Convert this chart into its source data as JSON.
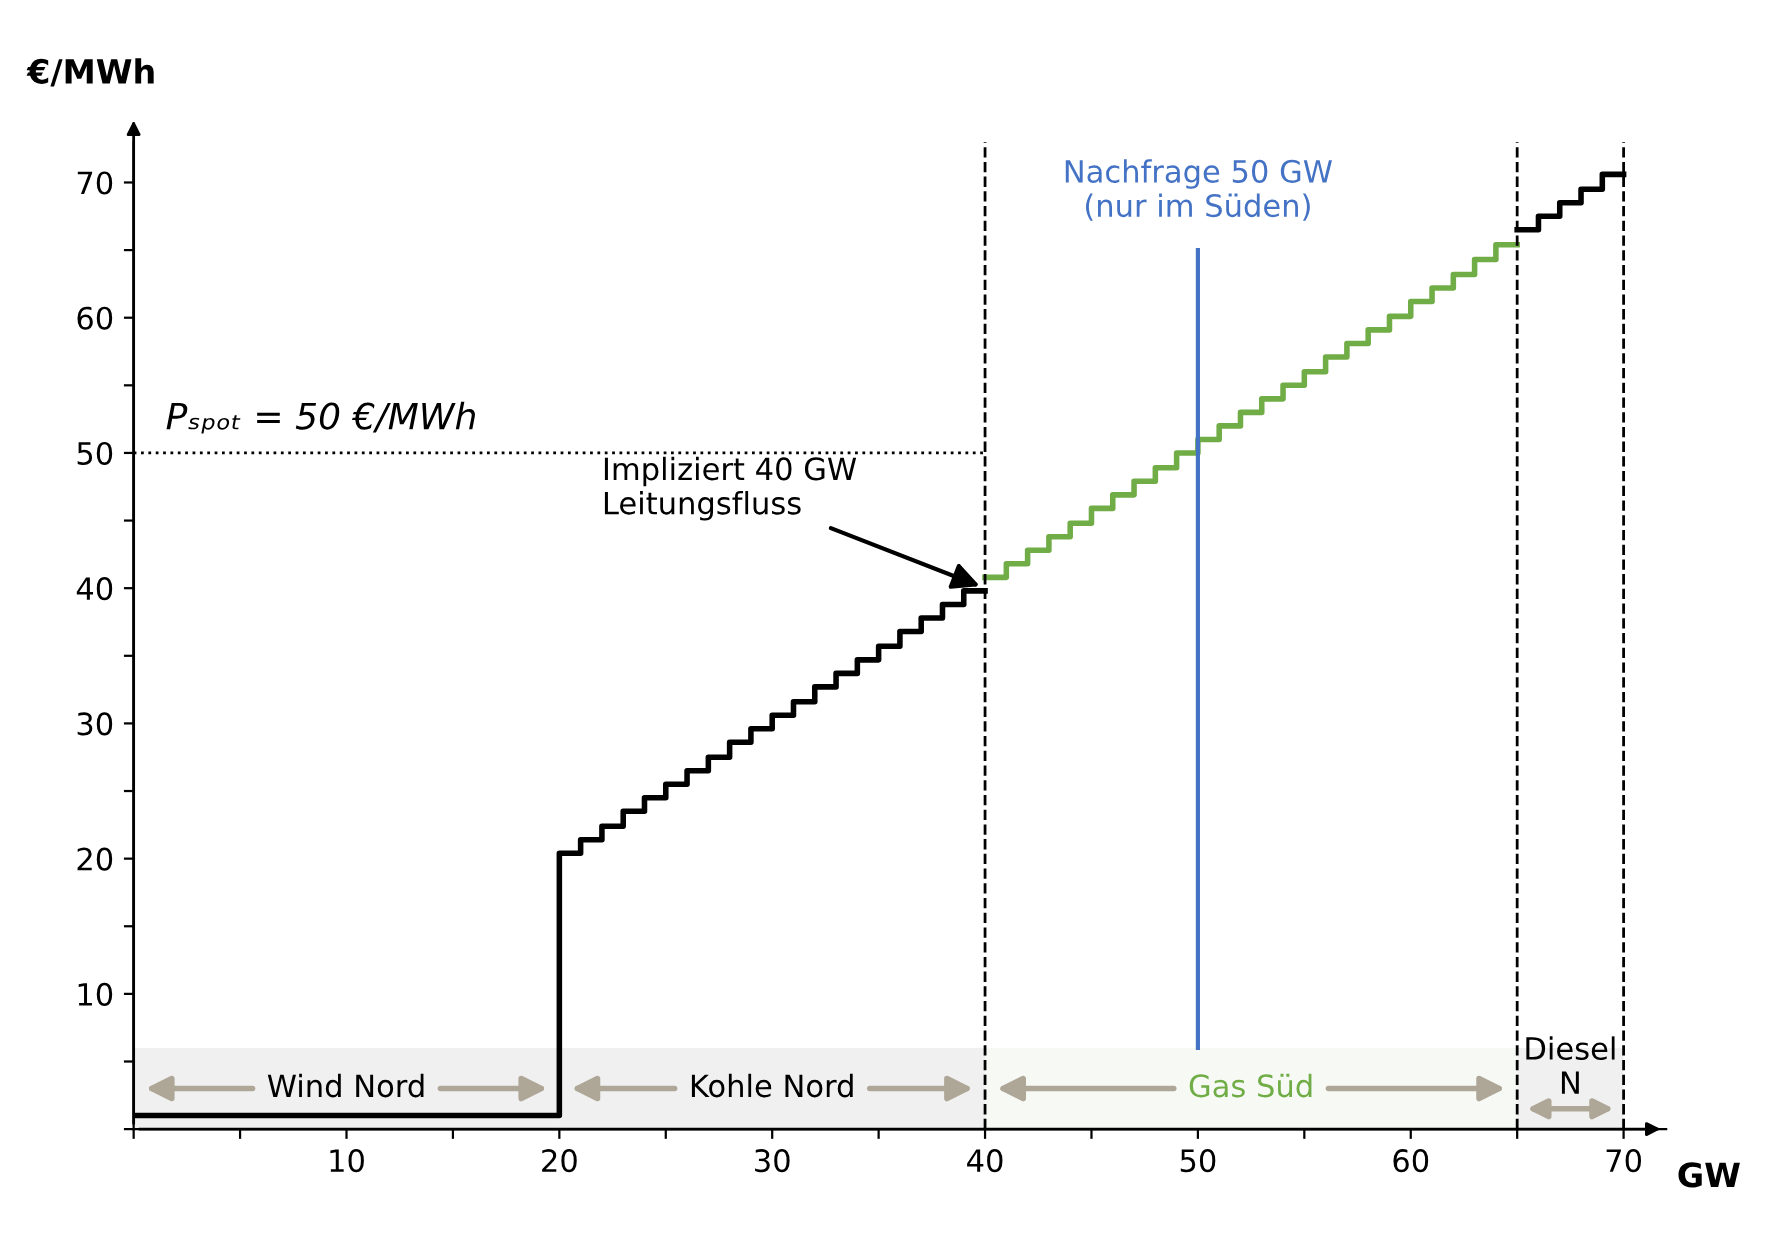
{
  "chart_data": {
    "type": "step",
    "xlabel": "GW",
    "ylabel": "€/MWh",
    "xlim": [
      0,
      72
    ],
    "ylim": [
      0,
      73
    ],
    "xticks": [
      {
        "value": 0,
        "label": null
      },
      {
        "value": 5,
        "label": null
      },
      10,
      {
        "value": 15,
        "label": null
      },
      20,
      {
        "value": 25,
        "label": null
      },
      30,
      {
        "value": 35,
        "label": null
      },
      40,
      {
        "value": 45,
        "label": null
      },
      50,
      {
        "value": 55,
        "label": null
      },
      60,
      {
        "value": 65,
        "label": null
      },
      70
    ],
    "yticks": [
      {
        "value": 0,
        "label": null
      },
      {
        "value": 5,
        "label": null
      },
      10,
      {
        "value": 15,
        "label": null
      },
      20,
      {
        "value": 25,
        "label": null
      },
      30,
      {
        "value": 35,
        "label": null
      },
      40,
      {
        "value": 45,
        "label": null
      },
      50,
      {
        "value": 55,
        "label": null
      },
      60,
      {
        "value": 65,
        "label": null
      },
      70
    ],
    "grid": false,
    "legend": false,
    "line_style": "solid",
    "marker": "none",
    "series": [
      {
        "color": "#000000",
        "x": [
          0,
          20,
          21,
          22,
          23,
          24,
          25,
          26,
          27,
          28,
          29,
          30,
          31,
          32,
          33,
          34,
          35,
          36,
          37,
          38,
          39,
          40
        ],
        "values": [
          1,
          20.4,
          21.4,
          22.4,
          23.5,
          24.5,
          25.5,
          26.5,
          27.5,
          28.6,
          29.6,
          30.6,
          31.6,
          32.7,
          33.7,
          34.7,
          35.7,
          36.8,
          37.8,
          38.8,
          39.8,
          39.8
        ]
      },
      {
        "color": "#70ad47",
        "x": [
          40,
          41,
          42,
          43,
          44,
          45,
          46,
          47,
          48,
          49,
          50,
          51,
          52,
          53,
          54,
          55,
          56,
          57,
          58,
          59,
          60,
          61,
          62,
          63,
          64,
          65
        ],
        "values": [
          40.8,
          41.8,
          42.8,
          43.8,
          44.8,
          45.9,
          46.9,
          47.9,
          48.9,
          50,
          51,
          52,
          53,
          54,
          55,
          56,
          57.1,
          58.1,
          59.1,
          60.1,
          61.2,
          62.2,
          63.2,
          64.3,
          65.4,
          65.4
        ]
      },
      {
        "color": "#000000",
        "x": [
          65,
          66,
          67,
          68,
          69,
          70
        ],
        "values": [
          66.5,
          67.5,
          68.5,
          69.5,
          70.6,
          70.6
        ]
      }
    ],
    "ref_lines": [
      {
        "axis": "y",
        "value": 50,
        "label": "Pₛₚₒₜ = 50 €/MWh",
        "color": "#000000",
        "line_style": "dotted"
      },
      {
        "axis": "x",
        "value": 40,
        "color": "#000000",
        "line_style": "dashed"
      },
      {
        "axis": "x",
        "value": 50,
        "label": "Nachfrage 50 GW\n(nur im Süden)",
        "color": "#4472c4",
        "line_style": "solid"
      },
      {
        "axis": "x",
        "value": 65,
        "color": "#000000",
        "line_style": "dashed"
      },
      {
        "axis": "x",
        "value": 70,
        "color": "#000000",
        "line_style": "dashed"
      }
    ],
    "bands": [
      {
        "axis": "x",
        "from": 0,
        "to": 20,
        "label": "Wind Nord",
        "color": "#000000"
      },
      {
        "axis": "x",
        "from": 20,
        "to": 40,
        "label": "Kohle Nord",
        "color": "#000000"
      },
      {
        "axis": "x",
        "from": 40,
        "to": 65,
        "label": "Gas Süd",
        "color": "#70ad47"
      },
      {
        "axis": "x",
        "from": 65,
        "to": 70,
        "label": "Diesel\nN",
        "color": "#000000"
      }
    ],
    "annotations": [
      {
        "text": "Impliziert 40 GW\nLeitungsfluss",
        "x": 40,
        "y": 40
      }
    ]
  }
}
